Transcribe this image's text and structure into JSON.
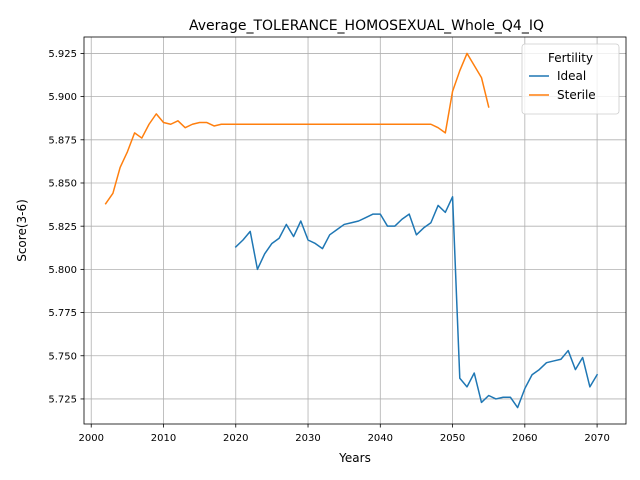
{
  "chart_data": {
    "type": "line",
    "title": "Average_TOLERANCE_HOMOSEXUAL_Whole_Q4_IQ",
    "xlabel": "Years",
    "ylabel": "Score(3-6)",
    "xlim": [
      1999,
      2074
    ],
    "ylim": [
      5.7105,
      5.9345
    ],
    "xticks": [
      2000,
      2010,
      2020,
      2030,
      2040,
      2050,
      2060,
      2070
    ],
    "yticks": [
      5.725,
      5.75,
      5.775,
      5.8,
      5.825,
      5.85,
      5.875,
      5.9,
      5.925
    ],
    "ytick_labels": [
      "5.725",
      "5.750",
      "5.775",
      "5.800",
      "5.825",
      "5.850",
      "5.875",
      "5.900",
      "5.925"
    ],
    "grid": true,
    "legend": {
      "title": "Fertility",
      "placement": "top-right"
    },
    "series": [
      {
        "name": "Ideal",
        "color": "#1f77b4",
        "x": [
          2020,
          2021,
          2022,
          2023,
          2024,
          2025,
          2026,
          2027,
          2028,
          2029,
          2030,
          2031,
          2032,
          2033,
          2034,
          2035,
          2036,
          2037,
          2038,
          2039,
          2040,
          2041,
          2042,
          2043,
          2044,
          2045,
          2046,
          2047,
          2048,
          2049,
          2050,
          2051,
          2052,
          2053,
          2054,
          2055,
          2056,
          2057,
          2058,
          2059,
          2060,
          2061,
          2062,
          2063,
          2064,
          2065,
          2066,
          2067,
          2068,
          2069,
          2070
        ],
        "values": [
          5.813,
          5.817,
          5.822,
          5.8,
          5.809,
          5.815,
          5.818,
          5.826,
          5.819,
          5.828,
          5.817,
          5.815,
          5.812,
          5.82,
          5.823,
          5.826,
          5.827,
          5.828,
          5.83,
          5.832,
          5.832,
          5.825,
          5.825,
          5.829,
          5.832,
          5.82,
          5.824,
          5.827,
          5.837,
          5.833,
          5.842,
          5.737,
          5.732,
          5.74,
          5.723,
          5.727,
          5.725,
          5.726,
          5.726,
          5.72,
          5.731,
          5.739,
          5.742,
          5.746,
          5.747,
          5.748,
          5.753,
          5.742,
          5.749,
          5.732,
          5.739
        ]
      },
      {
        "name": "Sterile",
        "color": "#ff7f0e",
        "x": [
          2002,
          2003,
          2004,
          2005,
          2006,
          2007,
          2008,
          2009,
          2010,
          2011,
          2012,
          2013,
          2014,
          2015,
          2016,
          2017,
          2018,
          2019,
          2020,
          2021,
          2022,
          2023,
          2024,
          2025,
          2026,
          2027,
          2028,
          2029,
          2030,
          2031,
          2032,
          2033,
          2034,
          2035,
          2036,
          2037,
          2038,
          2039,
          2040,
          2041,
          2042,
          2043,
          2044,
          2045,
          2046,
          2047,
          2048,
          2049,
          2050,
          2051,
          2052,
          2053,
          2054,
          2055
        ],
        "values": [
          5.838,
          5.844,
          5.859,
          5.868,
          5.879,
          5.876,
          5.884,
          5.89,
          5.885,
          5.884,
          5.886,
          5.882,
          5.884,
          5.885,
          5.885,
          5.883,
          5.884,
          5.884,
          5.884,
          5.884,
          5.884,
          5.884,
          5.884,
          5.884,
          5.884,
          5.884,
          5.884,
          5.884,
          5.884,
          5.884,
          5.884,
          5.884,
          5.884,
          5.884,
          5.884,
          5.884,
          5.884,
          5.884,
          5.884,
          5.884,
          5.884,
          5.884,
          5.884,
          5.884,
          5.884,
          5.884,
          5.882,
          5.879,
          5.903,
          5.915,
          5.925,
          5.918,
          5.911,
          5.894
        ]
      }
    ]
  }
}
